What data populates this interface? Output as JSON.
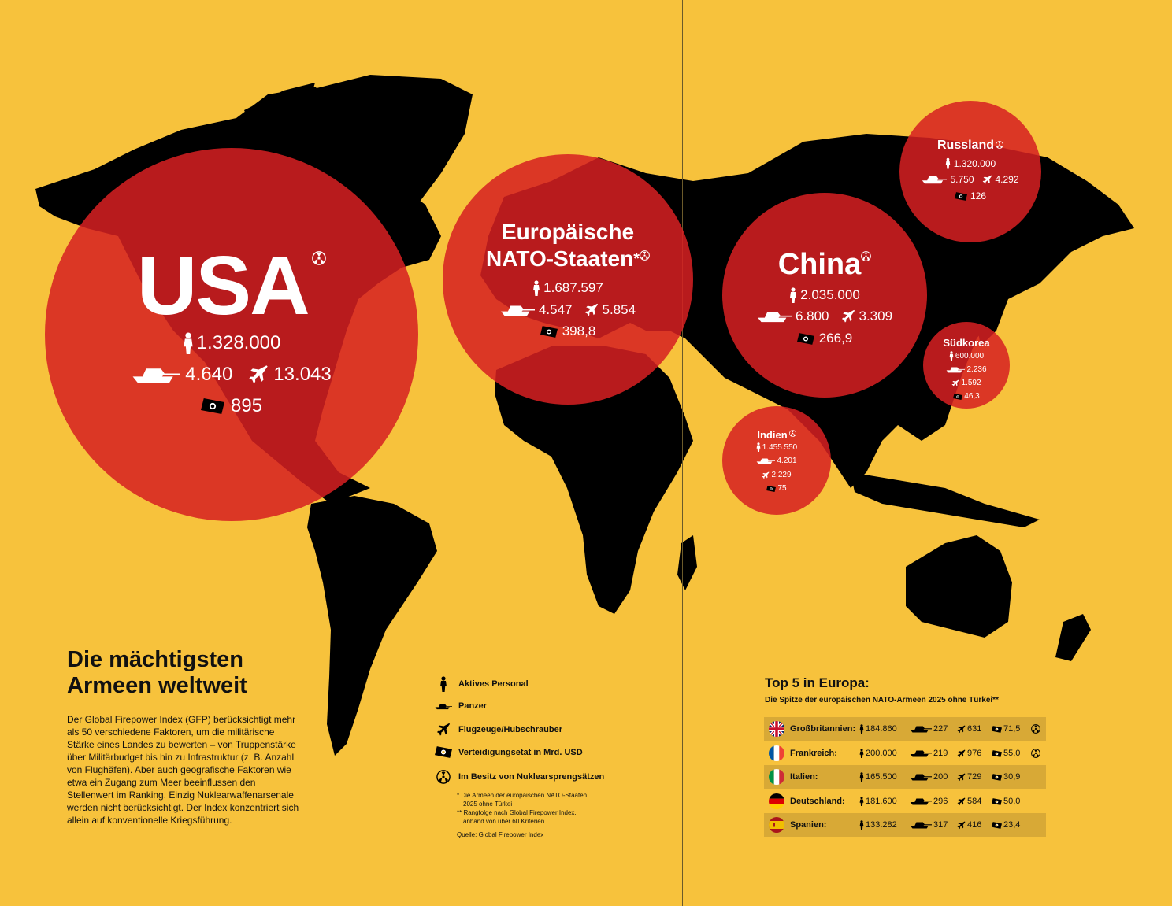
{
  "headline": "Die mächtigsten Armeen weltweit",
  "intro": "Der Global Firepower Index (GFP) berücksichtigt mehr als 50 verschiedene Faktoren, um die militärische Stärke eines Landes zu bewerten – von Truppenstärke über Militärbudget bis hin zu Infrastruktur (z. B. Anzahl von Flughäfen). Aber auch geografische Faktoren wie etwa ein Zugang zum Meer beeinflussen den Stellenwert im Ranking. Einzig Nuklearwaffenarsenale werden nicht berücksichtigt. Der Index konzentriert sich allein auf konventionelle Kriegsführung.",
  "colors": {
    "background": "#F7C23C",
    "bubble": "#D62022",
    "map": "#000000",
    "table_shade": "#D8A936"
  },
  "bubbles": {
    "usa": {
      "name": "USA",
      "personnel": "1.328.000",
      "tanks": "4.640",
      "aircraft": "13.043",
      "budget": "895",
      "nuclear": true
    },
    "nato": {
      "name_line1": "Europäische",
      "name_line2": "NATO-Staaten",
      "asterisk": "*",
      "personnel": "1.687.597",
      "tanks": "4.547",
      "aircraft": "5.854",
      "budget": "398,8",
      "nuclear": true
    },
    "china": {
      "name": "China",
      "personnel": "2.035.000",
      "tanks": "6.800",
      "aircraft": "3.309",
      "budget": "266,9",
      "nuclear": true
    },
    "russia": {
      "name": "Russland",
      "personnel": "1.320.000",
      "tanks": "5.750",
      "aircraft": "4.292",
      "budget": "126",
      "nuclear": true
    },
    "korea": {
      "name": "Südkorea",
      "personnel": "600.000",
      "tanks": "2.236",
      "aircraft": "1.592",
      "budget": "46,3",
      "nuclear": false
    },
    "india": {
      "name": "Indien",
      "personnel": "1.455.550",
      "tanks": "4.201",
      "aircraft": "2.229",
      "budget": "75",
      "nuclear": true
    }
  },
  "legend": {
    "personnel": "Aktives Personal",
    "tanks": "Panzer",
    "aircraft": "Flugzeuge/Hubschrauber",
    "budget": "Verteidigungsetat in Mrd. USD",
    "nuclear": "Im Besitz von Nuklearsprengsätzen",
    "note1_line1": "* Die Armeen der europäischen NATO-Staaten",
    "note1_line2": "2025 ohne Türkei",
    "note2_line1": "** Rangfolge nach Global Firepower Index,",
    "note2_line2": "anhand von über 60 Kriterien",
    "source": "Quelle: Global Firepower Index"
  },
  "top5": {
    "title": "Top 5 in Europa:",
    "subtitle": "Die Spitze der europäischen NATO-Armeen 2025 ohne Türkei**",
    "rows": [
      {
        "country": "Großbritannien:",
        "flag": "uk-flag",
        "personnel": "184.860",
        "tanks": "227",
        "aircraft": "631",
        "budget": "71,5",
        "nuclear": true
      },
      {
        "country": "Frankreich:",
        "flag": "france-flag",
        "personnel": "200.000",
        "tanks": "219",
        "aircraft": "976",
        "budget": "55,0",
        "nuclear": true
      },
      {
        "country": "Italien:",
        "flag": "italy-flag",
        "personnel": "165.500",
        "tanks": "200",
        "aircraft": "729",
        "budget": "30,9",
        "nuclear": false
      },
      {
        "country": "Deutschland:",
        "flag": "germany-flag",
        "personnel": "181.600",
        "tanks": "296",
        "aircraft": "584",
        "budget": "50,0",
        "nuclear": false
      },
      {
        "country": "Spanien:",
        "flag": "spain-flag",
        "personnel": "133.282",
        "tanks": "317",
        "aircraft": "416",
        "budget": "23,4",
        "nuclear": false
      }
    ]
  }
}
